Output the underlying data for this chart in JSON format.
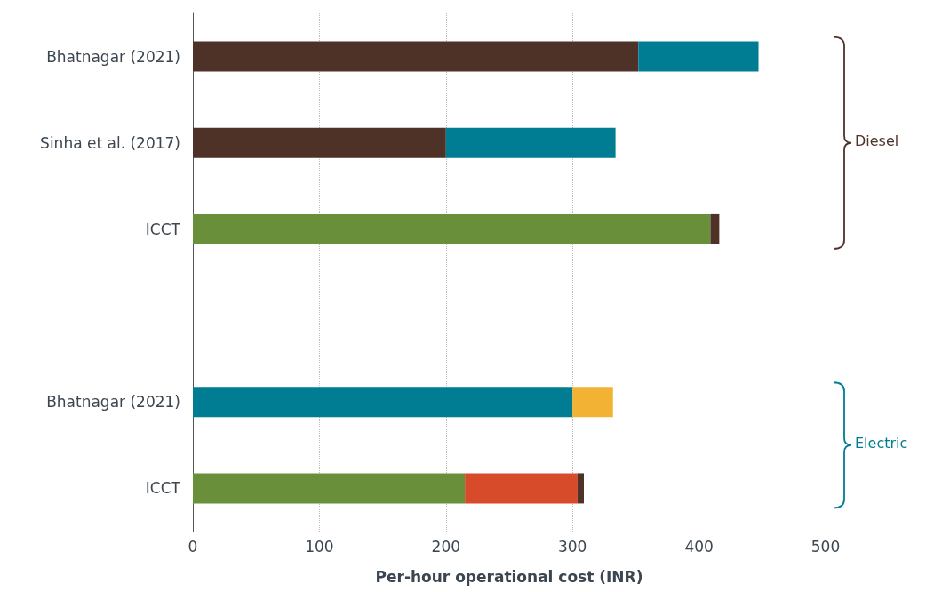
{
  "chart_data": {
    "type": "bar",
    "orientation": "horizontal",
    "stacked": true,
    "xlabel": "Per-hour operational cost (INR)",
    "categories": [
      "Bhatnagar (2021)",
      "Sinha et al. (2017)",
      "ICCT",
      null,
      "Bhatnagar (2021)",
      "ICCT"
    ],
    "xlim": [
      0,
      500
    ],
    "xticks": [
      0,
      100,
      200,
      300,
      400,
      500
    ],
    "grid": "x",
    "series": [
      {
        "values": [
          352,
          200,
          409,
          null,
          300,
          215
        ],
        "colors": [
          "#4e3228",
          "#4e3228",
          "#6a8f3a",
          null,
          "#007d93",
          "#6a8f3a"
        ]
      },
      {
        "values": [
          95,
          134,
          7,
          null,
          32,
          89
        ],
        "colors": [
          "#007d93",
          "#007d93",
          "#4e3228",
          null,
          "#f2b233",
          "#d74a2a"
        ]
      },
      {
        "values": [
          null,
          null,
          null,
          null,
          null,
          5
        ],
        "colors": [
          null,
          null,
          null,
          null,
          null,
          "#4e3228"
        ]
      }
    ],
    "annotations": [
      "Diesel",
      "Electric"
    ]
  }
}
